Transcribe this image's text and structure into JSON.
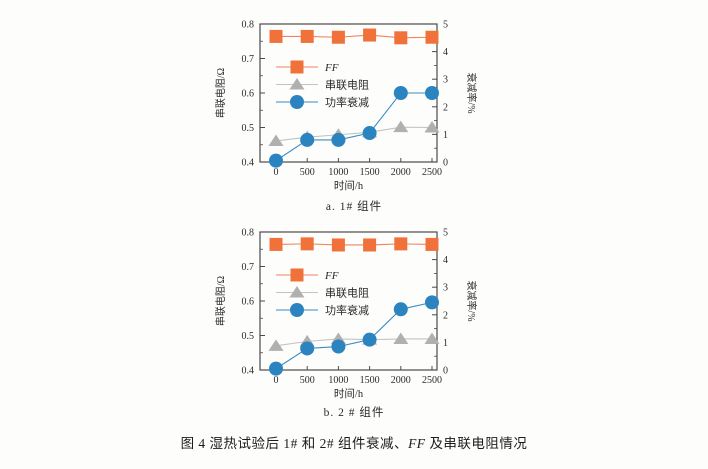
{
  "figure": {
    "caption_prefix": "图 4 湿热试验后 1# 和 2# 组件衰减、",
    "caption_italic": "FF",
    "caption_suffix": " 及串联电阻情况"
  },
  "colors": {
    "axis": "#4a4a4a",
    "text": "#2b2b2b",
    "ff_marker": "#f0713a",
    "ff_line": "#f0845c",
    "rs_marker": "#b0b0b0",
    "rs_line": "#c3c3c3",
    "pd_marker": "#2b83c0",
    "pd_line": "#3c8cc4"
  },
  "chart_data": [
    {
      "type": "line",
      "subcaption": "a. 1# 组件",
      "xlabel": "时间/h",
      "ylabel_left": "串联电阻/Ω",
      "ylabel_right": "衰减率/%",
      "xticks": [
        "0",
        "500",
        "1000",
        "1500",
        "2000",
        "2500"
      ],
      "yticks_left": [
        "0.4",
        "0.5",
        "0.6",
        "0.7",
        "0.8"
      ],
      "yticks_right": [
        "0",
        "1",
        "2",
        "3",
        "4",
        "5"
      ],
      "ylim_left": [
        0.4,
        0.8
      ],
      "ylim_right": [
        0,
        5
      ],
      "grid": false,
      "legend_position": "inside-upper-left",
      "x": [
        0,
        500,
        1000,
        1500,
        2000,
        2500
      ],
      "series": [
        {
          "name": "FF",
          "axis": "right",
          "marker": "square",
          "italic": true,
          "values": [
            4.55,
            4.55,
            4.52,
            4.6,
            4.5,
            4.52
          ]
        },
        {
          "name": "串联电阻",
          "axis": "left",
          "marker": "triangle",
          "italic": false,
          "values": [
            0.461,
            0.472,
            0.479,
            0.486,
            0.501,
            0.5
          ]
        },
        {
          "name": "功率衰减",
          "axis": "right",
          "marker": "circle",
          "italic": false,
          "values": [
            0.05,
            0.8,
            0.8,
            1.05,
            2.5,
            2.5
          ]
        }
      ]
    },
    {
      "type": "line",
      "subcaption": "b. 2 # 组件",
      "xlabel": "时间/h",
      "ylabel_left": "串联电阻/Ω",
      "ylabel_right": "衰减率/%",
      "xticks": [
        "0",
        "500",
        "1000",
        "1500",
        "2000",
        "2500"
      ],
      "yticks_left": [
        "0.4",
        "0.5",
        "0.6",
        "0.7",
        "0.8"
      ],
      "yticks_right": [
        "0",
        "1",
        "2",
        "3",
        "4",
        "5"
      ],
      "ylim_left": [
        0.4,
        0.8
      ],
      "ylim_right": [
        0,
        5
      ],
      "grid": false,
      "legend_position": "inside-upper-left",
      "x": [
        0,
        500,
        1000,
        1500,
        2000,
        2500
      ],
      "series": [
        {
          "name": "FF",
          "axis": "right",
          "marker": "square",
          "italic": true,
          "values": [
            4.55,
            4.57,
            4.53,
            4.53,
            4.57,
            4.55
          ]
        },
        {
          "name": "串联电阻",
          "axis": "left",
          "marker": "triangle",
          "italic": false,
          "values": [
            0.47,
            0.483,
            0.49,
            0.488,
            0.49,
            0.49
          ]
        },
        {
          "name": "功率衰减",
          "axis": "right",
          "marker": "circle",
          "italic": false,
          "values": [
            0.05,
            0.78,
            0.85,
            1.1,
            2.2,
            2.45
          ]
        }
      ]
    }
  ]
}
